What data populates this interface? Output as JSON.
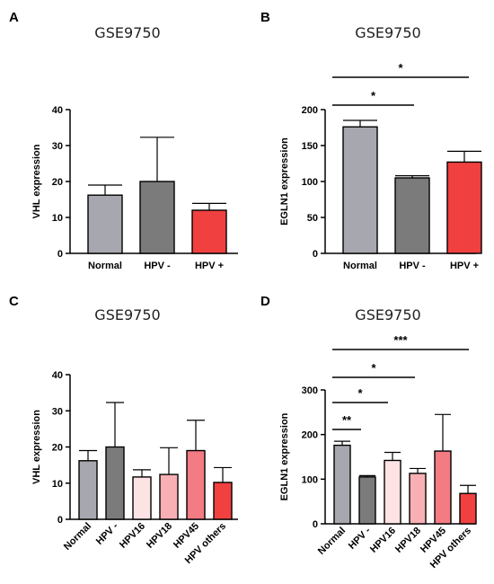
{
  "chart_data": [
    {
      "panel": "A",
      "type": "bar",
      "title": "GSE9750",
      "ylabel": "VHL expression",
      "ylim": [
        0,
        40
      ],
      "yticks": [
        0,
        10,
        20,
        30,
        40
      ],
      "categories": [
        "Normal",
        "HPV -",
        "HPV +"
      ],
      "values": [
        16.2,
        20.0,
        12.0
      ],
      "errors": [
        2.8,
        12.3,
        1.9
      ],
      "colors": [
        "#a7a7af",
        "#7b7b7b",
        "#f04040"
      ],
      "significance": []
    },
    {
      "panel": "B",
      "type": "bar",
      "title": "GSE9750",
      "ylabel": "EGLN1 expression",
      "ylim": [
        0,
        200
      ],
      "yticks": [
        0,
        50,
        100,
        150,
        200
      ],
      "categories": [
        "Normal",
        "HPV -",
        "HPV +"
      ],
      "values": [
        176,
        105,
        127
      ],
      "errors": [
        9,
        3,
        15
      ],
      "colors": [
        "#a7a7af",
        "#7b7b7b",
        "#f04040"
      ],
      "significance": [
        {
          "from": 0,
          "to": 1,
          "label": "*"
        },
        {
          "from": 0,
          "to": 2,
          "label": "*"
        }
      ]
    },
    {
      "panel": "C",
      "type": "bar",
      "title": "GSE9750",
      "ylabel": "VHL expression",
      "ylim": [
        0,
        40
      ],
      "yticks": [
        0,
        10,
        20,
        30,
        40
      ],
      "categories": [
        "Normal",
        "HPV -",
        "HPV16",
        "HPV18",
        "HPV45",
        "HPV others"
      ],
      "values": [
        16.2,
        20.0,
        11.7,
        12.4,
        19.0,
        10.2
      ],
      "errors": [
        2.8,
        12.3,
        2.0,
        7.4,
        8.4,
        4.1
      ],
      "colors": [
        "#a7a7af",
        "#7b7b7b",
        "#fde3e4",
        "#f8b0b4",
        "#f27b84",
        "#f04040"
      ],
      "significance": []
    },
    {
      "panel": "D",
      "type": "bar",
      "title": "GSE9750",
      "ylabel": "EGLN1 expression",
      "ylim": [
        0,
        300
      ],
      "yticks": [
        0,
        100,
        200,
        300
      ],
      "categories": [
        "Normal",
        "HPV -",
        "HPV16",
        "HPV18",
        "HPV45",
        "HPV others"
      ],
      "values": [
        176,
        105,
        142,
        113,
        163,
        68
      ],
      "errors": [
        9,
        3,
        18,
        11,
        82,
        18
      ],
      "colors": [
        "#a7a7af",
        "#7b7b7b",
        "#fde3e4",
        "#f8b0b4",
        "#f27b84",
        "#f04040"
      ],
      "significance": [
        {
          "from": 0,
          "to": 1,
          "label": "**"
        },
        {
          "from": 0,
          "to": 2,
          "label": "*"
        },
        {
          "from": 0,
          "to": 3,
          "label": "*"
        },
        {
          "from": 0,
          "to": 5,
          "label": "***"
        }
      ]
    }
  ]
}
